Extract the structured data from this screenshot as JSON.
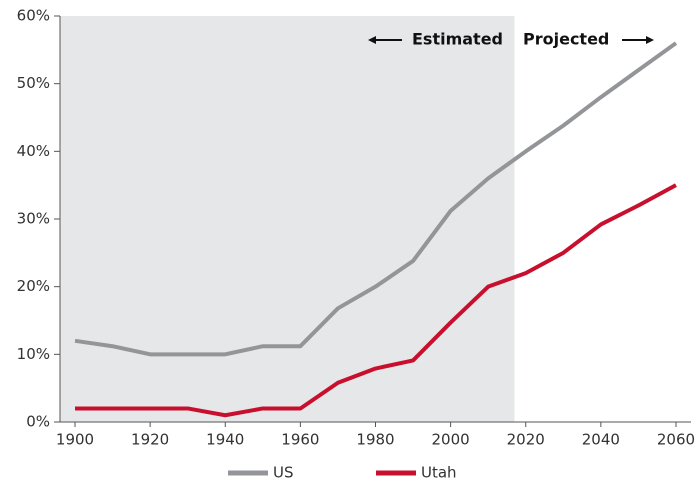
{
  "chart_data": {
    "type": "line",
    "x": [
      1900,
      1910,
      1920,
      1930,
      1940,
      1950,
      1960,
      1970,
      1980,
      1990,
      2000,
      2010,
      2020,
      2030,
      2040,
      2050,
      2060
    ],
    "series": [
      {
        "name": "US",
        "color": "#939598",
        "values": [
          12,
          11.2,
          10,
          10,
          10,
          11.2,
          11.2,
          16.8,
          20,
          23.8,
          31.2,
          36,
          40,
          43.8,
          48,
          52,
          56
        ]
      },
      {
        "name": "Utah",
        "color": "#c8102e",
        "values": [
          2,
          2,
          2,
          2,
          1,
          2,
          2,
          5.8,
          7.9,
          9.1,
          14.7,
          20,
          22,
          25,
          29.2,
          32,
          35
        ]
      }
    ],
    "xlim": [
      1896,
      2064
    ],
    "ylim": [
      0,
      60
    ],
    "xticks": [
      1900,
      1920,
      1940,
      1960,
      1980,
      2000,
      2020,
      2040,
      2060
    ],
    "yticks": [
      {
        "value": 0,
        "label": "0%"
      },
      {
        "value": 10,
        "label": "10%"
      },
      {
        "value": 20,
        "label": "20%"
      },
      {
        "value": 30,
        "label": "30%"
      },
      {
        "value": 40,
        "label": "40%"
      },
      {
        "value": 50,
        "label": "50%"
      },
      {
        "value": 60,
        "label": "60%"
      }
    ],
    "shaded_region": [
      1896,
      2017
    ],
    "annotations": [
      "Estimated",
      "Projected"
    ],
    "legend": "bottom"
  }
}
